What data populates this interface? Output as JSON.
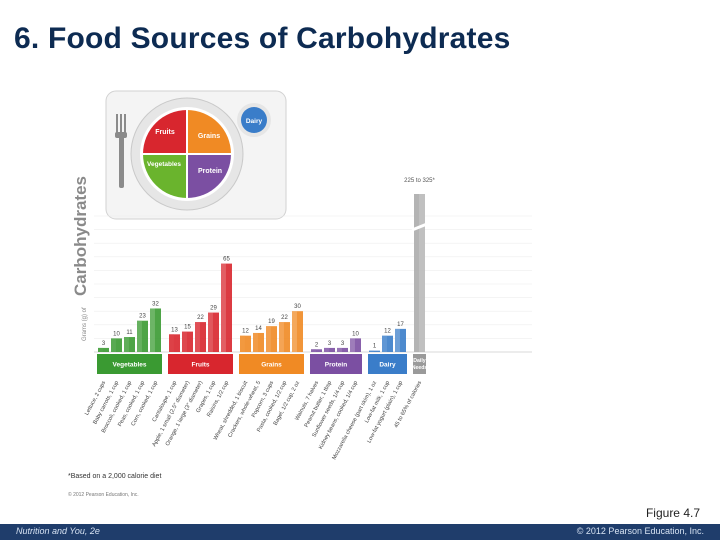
{
  "slide": {
    "title": "6. Food Sources of Carbohydrates",
    "figure_caption": "Figure 4.7",
    "footer_left": "Nutrition and You, 2e",
    "footer_right": "© 2012 Pearson Education, Inc."
  },
  "plate": {
    "sections": [
      "Fruits",
      "Grains",
      "Vegetables",
      "Protein",
      "Dairy"
    ],
    "colors": {
      "fruits": "#d8262e",
      "grains": "#f08a24",
      "vegetables": "#6ab42d",
      "protein": "#7b4fa2",
      "dairy": "#3a7dc9"
    }
  },
  "chart_data": {
    "type": "bar",
    "ylabel_prefix": "Grams (g) of",
    "ylabel_main": "Carbohydrates",
    "footnote": "*Based on a 2,000 calorie diet",
    "credit": "© 2012 Pearson Education, Inc.",
    "daily_needs_label": "225 to 325*",
    "group_labels": [
      "Vegetables",
      "Fruits",
      "Grains",
      "Protein",
      "Dairy",
      "Daily Needs"
    ],
    "group_colors": [
      "#3a9a32",
      "#d8262e",
      "#f08a24",
      "#7b4fa2",
      "#3a7dc9",
      "#9a9a9a"
    ],
    "groups": [
      {
        "name": "Vegetables",
        "items": [
          {
            "label": "Lettuce, 2 cups",
            "value": 3
          },
          {
            "label": "Baby carrots, 1 cup",
            "value": 10
          },
          {
            "label": "Broccoli, cooked, 1 cup",
            "value": 11
          },
          {
            "label": "Peas, cooked, 1 cup",
            "value": 23
          },
          {
            "label": "Corn, cooked, 1 cup",
            "value": 32
          }
        ]
      },
      {
        "name": "Fruits",
        "items": [
          {
            "label": "Cantaloupe, 1 cup",
            "value": 13
          },
          {
            "label": "Apple, 1 small (2.5\" diameter)",
            "value": 15
          },
          {
            "label": "Orange, 1 large (3\" diameter)",
            "value": 22
          },
          {
            "label": "Grapes, 1 cup",
            "value": 29
          },
          {
            "label": "Raisins, 1/2 cup",
            "value": 65
          }
        ]
      },
      {
        "name": "Grains",
        "items": [
          {
            "label": "Wheat, shredded, 1 biscuit",
            "value": 12
          },
          {
            "label": "Crackers, whole-wheat, 5",
            "value": 14
          },
          {
            "label": "Popcorn, 3 cups",
            "value": 19
          },
          {
            "label": "Pasta, cooked, 1/2 cup",
            "value": 22
          },
          {
            "label": "Bagel, 1/2 cup, 2 oz",
            "value": 30
          }
        ]
      },
      {
        "name": "Protein",
        "items": [
          {
            "label": "Walnuts, 7 halves",
            "value": 2
          },
          {
            "label": "Peanut butter, 1 tbsp",
            "value": 3
          },
          {
            "label": "Sunflower seeds, 1/4 cup",
            "value": 3
          },
          {
            "label": "Kidney beans, cooked, 1/4 cup",
            "value": 10
          }
        ]
      },
      {
        "name": "Dairy",
        "items": [
          {
            "label": "Mozzarella cheese (part skim), 1 oz",
            "value": 1
          },
          {
            "label": "Low-fat milk, 1 cup",
            "value": 12
          },
          {
            "label": "Low-fat yogurt (plain), 1 cup",
            "value": 17
          }
        ]
      },
      {
        "name": "Daily Needs",
        "items": [
          {
            "label": "45 to 65% of calories",
            "value": 325
          }
        ]
      }
    ],
    "ylim": [
      0,
      100
    ],
    "grid": true
  }
}
